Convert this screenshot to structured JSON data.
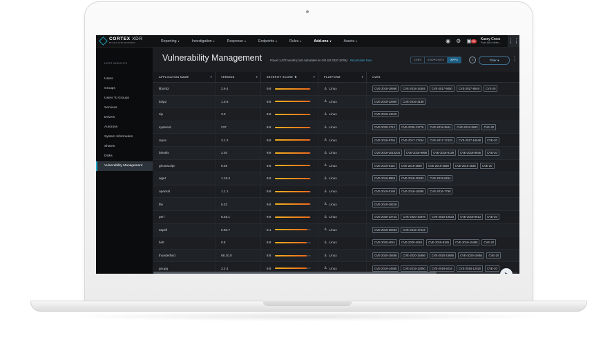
{
  "app": {
    "logo_main": "CORTEX",
    "logo_xdr": " XDR",
    "logo_sub": "BY PALO ALTO NETWORKS"
  },
  "nav": [
    {
      "label": "Reporting",
      "caret": "▾"
    },
    {
      "label": "Investigation",
      "caret": "▾"
    },
    {
      "label": "Response",
      "caret": "▾"
    },
    {
      "label": "Endpoints",
      "caret": "▾"
    },
    {
      "label": "Rules",
      "caret": "▾"
    },
    {
      "label": "Add-ons",
      "caret": "▾"
    },
    {
      "label": "Assets",
      "caret": "▾"
    }
  ],
  "topbar": {
    "notifications_badge": "34",
    "user_name": "Kasey Cross",
    "user_org": "Palo Alto Netw..."
  },
  "sidebar": {
    "heading": "HOST INSIGHTS",
    "items": [
      {
        "label": "Users"
      },
      {
        "label": "Groups"
      },
      {
        "label": "Users To Groups"
      },
      {
        "label": "Services"
      },
      {
        "label": "Drivers"
      },
      {
        "label": "Autoruns"
      },
      {
        "label": "System Information"
      },
      {
        "label": "Shares"
      },
      {
        "label": "Disks"
      },
      {
        "label": "Vulnerability Management"
      }
    ]
  },
  "page": {
    "title": "Vulnerability Management",
    "results_text": "Found 1,873 results (Last calculated on Oct 3rd 2020 18:55)",
    "recalculate": "Recalculate Now",
    "segments": [
      "CVES",
      "ENDPOINTS",
      "APPS"
    ],
    "filter_label": "Filter ▾"
  },
  "table": {
    "headers": {
      "app": "APPLICATION NAME",
      "version": "VERSION",
      "score": "SEVERITY SCORE",
      "platform": "PLATFORM",
      "cves": "CVES"
    },
    "rows": [
      {
        "app": "libxml2",
        "version": "2.9.4",
        "score": "9.8",
        "score_fraction": 0.98,
        "platform": "Linux",
        "cves": [
          "CVE-2019-19956",
          "CVE-2018-14404",
          "CVE-2017-9050",
          "CVE-2017-9049",
          "CVE-20"
        ]
      },
      {
        "app": "bzip2",
        "version": "1.0.6",
        "score": "9.8",
        "score_fraction": 0.98,
        "platform": "Linux",
        "cves": [
          "CVE-2019-12900",
          "CVE-2016-3189"
        ]
      },
      {
        "app": "zip",
        "version": "3.0",
        "score": "9.8",
        "score_fraction": 0.98,
        "platform": "Linux",
        "cves": [
          "CVE-2018-13410"
        ]
      },
      {
        "app": "systemd",
        "version": "237",
        "score": "9.8",
        "score_fraction": 0.98,
        "platform": "Linux",
        "cves": [
          "CVE-2020-1712",
          "CVE-2020-13776",
          "CVE-2019-3844",
          "CVE-2019-3843",
          "CVE-20"
        ]
      },
      {
        "app": "rsync",
        "version": "3.1.2",
        "score": "9.8",
        "score_fraction": 0.98,
        "platform": "Linux",
        "cves": [
          "CVE-2018-5764",
          "CVE-2017-17434",
          "CVE-2017-17433",
          "CVE-2017-16548",
          "CVE-20"
        ]
      },
      {
        "app": "binutils",
        "version": "2.30",
        "score": "9.8",
        "score_fraction": 0.98,
        "platform": "Linux",
        "cves": [
          "CVE-2019-1010204",
          "CVE-2018-9996",
          "CVE-2018-9138",
          "CVE-2018-8945",
          "CVE-20"
        ]
      },
      {
        "app": "ghostscript",
        "version": "9.26",
        "score": "9.8",
        "score_fraction": 0.98,
        "platform": "Linux",
        "cves": [
          "CVE-2019-6116",
          "CVE-2019-3839",
          "CVE-2019-3838",
          "CVE-2019-3835",
          "CVE-20"
        ]
      },
      {
        "app": "wget",
        "version": "1.19.4",
        "score": "9.8",
        "score_fraction": 0.98,
        "platform": "Linux",
        "cves": [
          "CVE-2019-5953",
          "CVE-2018-20483",
          "CVE-2018-0494"
        ]
      },
      {
        "app": "openssl",
        "version": "1.1.1",
        "score": "9.8",
        "score_fraction": 0.98,
        "platform": "Linux",
        "cves": [
          "CVE-2019-0190",
          "CVE-2018-16395",
          "CVE-2016-7798"
        ]
      },
      {
        "app": "file",
        "version": "5.32",
        "score": "9.8",
        "score_fraction": 0.98,
        "platform": "Linux",
        "cves": [
          "CVE-2019-18218"
        ]
      },
      {
        "app": "perl",
        "version": "5.26.1",
        "score": "9.8",
        "score_fraction": 0.98,
        "platform": "Linux",
        "cves": [
          "CVE-2020-12723",
          "CVE-2020-10878",
          "CVE-2020-10543",
          "CVE-2018-6913",
          "CVE-20"
        ]
      },
      {
        "app": "aspell",
        "version": "0.60.7",
        "score": "9.1",
        "score_fraction": 0.91,
        "platform": "Linux",
        "cves": [
          "CVE-2019-20433",
          "CVE-2019-17544"
        ]
      },
      {
        "app": "bolt",
        "version": "0.5",
        "score": "8.8",
        "score_fraction": 0.88,
        "platform": "Linux",
        "cves": [
          "CVE-2020-4041",
          "CVE-2020-4040",
          "CVE-2019-9185",
          "CVE-2019-15485",
          "CVE-20"
        ]
      },
      {
        "app": "thunderbird",
        "version": "68.10.0",
        "score": "8.8",
        "score_fraction": 0.88,
        "platform": "Linux",
        "cves": [
          "CVE-2020-15658",
          "CVE-2020-15656",
          "CVE-2020-15655",
          "CVE-2020-15654",
          "CVE-20"
        ]
      },
      {
        "app": "gnupg",
        "version": "2.2.4",
        "score": "8.8",
        "score_fraction": 0.88,
        "platform": "Linux",
        "cves": [
          "CVE-2019-14855",
          "CVE-2019-13050",
          "CVE-2018-9234",
          "CVE-2018-12020",
          "CVE-20"
        ]
      }
    ]
  },
  "colors": {
    "accent": "#1ea7c7",
    "bar_start": "#f2b01e",
    "bar_end": "#ef6a1c"
  }
}
